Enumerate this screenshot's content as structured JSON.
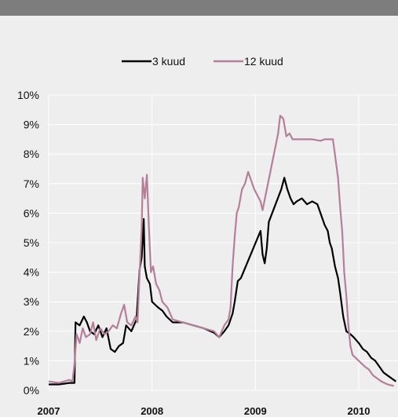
{
  "chart_data": {
    "type": "line",
    "title": "",
    "xlabel": "",
    "ylabel": "",
    "xlim": [
      2007.0,
      2010.38
    ],
    "ylim": [
      0,
      10
    ],
    "x_ticks": [
      "2007",
      "2008",
      "2009",
      "2010"
    ],
    "y_ticks": [
      "0%",
      "1%",
      "2%",
      "3%",
      "4%",
      "5%",
      "6%",
      "7%",
      "8%",
      "9%",
      "10%"
    ],
    "grid": true,
    "legend_position": "top",
    "series": [
      {
        "name": "3 kuud",
        "color": "#000000",
        "points": [
          [
            2007.0,
            0.2
          ],
          [
            2007.1,
            0.2
          ],
          [
            2007.2,
            0.25
          ],
          [
            2007.25,
            0.25
          ],
          [
            2007.26,
            2.3
          ],
          [
            2007.3,
            2.2
          ],
          [
            2007.34,
            2.5
          ],
          [
            2007.37,
            2.3
          ],
          [
            2007.4,
            2.0
          ],
          [
            2007.44,
            1.9
          ],
          [
            2007.48,
            2.2
          ],
          [
            2007.52,
            1.8
          ],
          [
            2007.56,
            2.1
          ],
          [
            2007.6,
            1.4
          ],
          [
            2007.64,
            1.3
          ],
          [
            2007.68,
            1.5
          ],
          [
            2007.72,
            1.6
          ],
          [
            2007.75,
            2.2
          ],
          [
            2007.8,
            2.0
          ],
          [
            2007.85,
            2.4
          ],
          [
            2007.88,
            4.1
          ],
          [
            2007.9,
            4.5
          ],
          [
            2007.92,
            5.8
          ],
          [
            2007.93,
            4.2
          ],
          [
            2007.95,
            3.8
          ],
          [
            2007.98,
            3.6
          ],
          [
            2008.0,
            3.0
          ],
          [
            2008.03,
            2.9
          ],
          [
            2008.06,
            2.8
          ],
          [
            2008.1,
            2.7
          ],
          [
            2008.14,
            2.5
          ],
          [
            2008.2,
            2.3
          ],
          [
            2008.3,
            2.3
          ],
          [
            2008.4,
            2.2
          ],
          [
            2008.5,
            2.1
          ],
          [
            2008.6,
            1.95
          ],
          [
            2008.65,
            1.8
          ],
          [
            2008.7,
            2.0
          ],
          [
            2008.74,
            2.2
          ],
          [
            2008.78,
            2.6
          ],
          [
            2008.8,
            3.0
          ],
          [
            2008.83,
            3.7
          ],
          [
            2008.86,
            3.8
          ],
          [
            2009.05,
            5.4
          ],
          [
            2009.07,
            4.6
          ],
          [
            2009.09,
            4.3
          ],
          [
            2009.11,
            4.8
          ],
          [
            2009.13,
            5.7
          ],
          [
            2009.25,
            6.8
          ],
          [
            2009.28,
            7.2
          ],
          [
            2009.31,
            6.8
          ],
          [
            2009.34,
            6.5
          ],
          [
            2009.37,
            6.3
          ],
          [
            2009.4,
            6.4
          ],
          [
            2009.45,
            6.5
          ],
          [
            2009.5,
            6.3
          ],
          [
            2009.55,
            6.4
          ],
          [
            2009.6,
            6.3
          ],
          [
            2009.65,
            5.8
          ],
          [
            2009.67,
            5.6
          ],
          [
            2009.7,
            5.4
          ],
          [
            2009.72,
            5.0
          ],
          [
            2009.74,
            4.8
          ],
          [
            2009.77,
            4.2
          ],
          [
            2009.8,
            3.8
          ],
          [
            2009.82,
            3.3
          ],
          [
            2009.85,
            2.5
          ],
          [
            2009.88,
            2.0
          ],
          [
            2009.92,
            1.9
          ],
          [
            2009.95,
            1.8
          ],
          [
            2010.0,
            1.6
          ],
          [
            2010.04,
            1.4
          ],
          [
            2010.08,
            1.3
          ],
          [
            2010.12,
            1.1
          ],
          [
            2010.16,
            1.0
          ],
          [
            2010.2,
            0.8
          ],
          [
            2010.24,
            0.6
          ],
          [
            2010.28,
            0.5
          ],
          [
            2010.32,
            0.4
          ],
          [
            2010.36,
            0.3
          ]
        ]
      },
      {
        "name": "12 kuud",
        "color": "#b57f9a",
        "points": [
          [
            2007.0,
            0.3
          ],
          [
            2007.1,
            0.25
          ],
          [
            2007.15,
            0.3
          ],
          [
            2007.2,
            0.35
          ],
          [
            2007.23,
            0.3
          ],
          [
            2007.25,
            0.9
          ],
          [
            2007.27,
            1.9
          ],
          [
            2007.3,
            1.6
          ],
          [
            2007.33,
            2.1
          ],
          [
            2007.36,
            1.8
          ],
          [
            2007.4,
            1.9
          ],
          [
            2007.43,
            2.3
          ],
          [
            2007.46,
            1.7
          ],
          [
            2007.5,
            2.1
          ],
          [
            2007.54,
            1.9
          ],
          [
            2007.58,
            2.0
          ],
          [
            2007.62,
            2.2
          ],
          [
            2007.66,
            2.1
          ],
          [
            2007.7,
            2.6
          ],
          [
            2007.73,
            2.9
          ],
          [
            2007.76,
            2.3
          ],
          [
            2007.8,
            2.2
          ],
          [
            2007.84,
            2.5
          ],
          [
            2007.86,
            2.3
          ],
          [
            2007.88,
            4.0
          ],
          [
            2007.9,
            5.5
          ],
          [
            2007.91,
            7.2
          ],
          [
            2007.93,
            6.5
          ],
          [
            2007.95,
            7.3
          ],
          [
            2007.97,
            5.5
          ],
          [
            2007.99,
            4.0
          ],
          [
            2008.01,
            4.2
          ],
          [
            2008.04,
            3.6
          ],
          [
            2008.07,
            3.4
          ],
          [
            2008.1,
            3.0
          ],
          [
            2008.15,
            2.8
          ],
          [
            2008.2,
            2.4
          ],
          [
            2008.3,
            2.3
          ],
          [
            2008.4,
            2.2
          ],
          [
            2008.5,
            2.1
          ],
          [
            2008.6,
            2.0
          ],
          [
            2008.65,
            1.8
          ],
          [
            2008.7,
            2.2
          ],
          [
            2008.74,
            2.4
          ],
          [
            2008.76,
            2.8
          ],
          [
            2008.78,
            4.2
          ],
          [
            2008.8,
            5.2
          ],
          [
            2008.82,
            6.0
          ],
          [
            2008.84,
            6.2
          ],
          [
            2008.87,
            6.8
          ],
          [
            2008.9,
            7.0
          ],
          [
            2008.93,
            7.4
          ],
          [
            2008.96,
            7.1
          ],
          [
            2008.99,
            6.8
          ],
          [
            2009.02,
            6.6
          ],
          [
            2009.05,
            6.4
          ],
          [
            2009.07,
            6.1
          ],
          [
            2009.22,
            8.7
          ],
          [
            2009.24,
            9.3
          ],
          [
            2009.27,
            9.2
          ],
          [
            2009.3,
            8.6
          ],
          [
            2009.33,
            8.7
          ],
          [
            2009.36,
            8.5
          ],
          [
            2009.45,
            8.5
          ],
          [
            2009.55,
            8.5
          ],
          [
            2009.63,
            8.45
          ],
          [
            2009.67,
            8.5
          ],
          [
            2009.75,
            8.5
          ],
          [
            2009.8,
            7.2
          ],
          [
            2009.82,
            6.2
          ],
          [
            2009.84,
            5.4
          ],
          [
            2009.86,
            4.0
          ],
          [
            2009.88,
            3.2
          ],
          [
            2009.9,
            2.2
          ],
          [
            2009.92,
            1.5
          ],
          [
            2009.94,
            1.2
          ],
          [
            2009.97,
            1.1
          ],
          [
            2010.0,
            1.0
          ],
          [
            2010.03,
            0.9
          ],
          [
            2010.06,
            0.8
          ],
          [
            2010.1,
            0.7
          ],
          [
            2010.14,
            0.5
          ],
          [
            2010.18,
            0.4
          ],
          [
            2010.22,
            0.3
          ],
          [
            2010.28,
            0.2
          ],
          [
            2010.34,
            0.15
          ]
        ]
      }
    ]
  }
}
